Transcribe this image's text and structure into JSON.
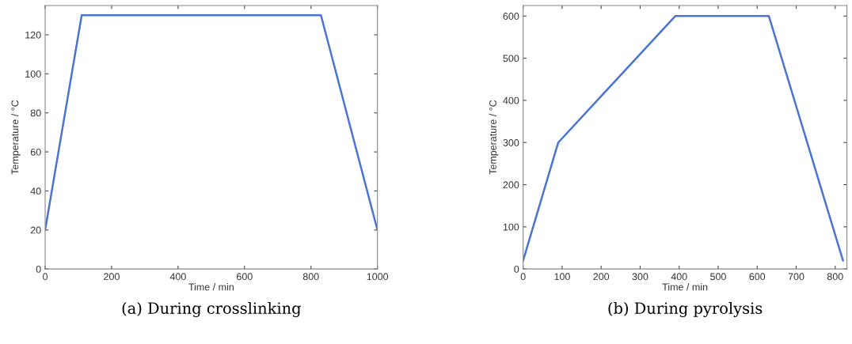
{
  "chart_data": [
    {
      "type": "line",
      "xlabel": "Time / min",
      "ylabel": "Temperature / °C",
      "x": [
        0,
        110,
        830,
        1000
      ],
      "series": [
        {
          "color": "#4a74d0",
          "values": [
            20,
            130,
            130,
            20
          ]
        }
      ],
      "xlim": [
        0,
        1000
      ],
      "xticks": [
        0,
        200,
        400,
        600,
        800,
        1000
      ],
      "ylim": [
        0,
        135
      ],
      "yticks": [
        0,
        20,
        40,
        60,
        80,
        100,
        120
      ],
      "grid": false,
      "legend": false,
      "marker": "none",
      "line_style": "solid",
      "annotations": [
        "(a) During crosslinking"
      ]
    },
    {
      "type": "line",
      "xlabel": "Time / min",
      "ylabel": "Temperature / °C",
      "x": [
        0,
        90,
        390,
        630,
        820
      ],
      "series": [
        {
          "color": "#4a74d0",
          "values": [
            20,
            300,
            600,
            600,
            20
          ]
        }
      ],
      "xlim": [
        0,
        830
      ],
      "xticks": [
        0,
        100,
        200,
        300,
        400,
        500,
        600,
        700,
        800
      ],
      "ylim": [
        0,
        625
      ],
      "yticks": [
        0,
        100,
        200,
        300,
        400,
        500,
        600
      ],
      "grid": false,
      "legend": false,
      "marker": "none",
      "line_style": "solid",
      "annotations": [
        "(b) During pyrolysis"
      ]
    }
  ]
}
